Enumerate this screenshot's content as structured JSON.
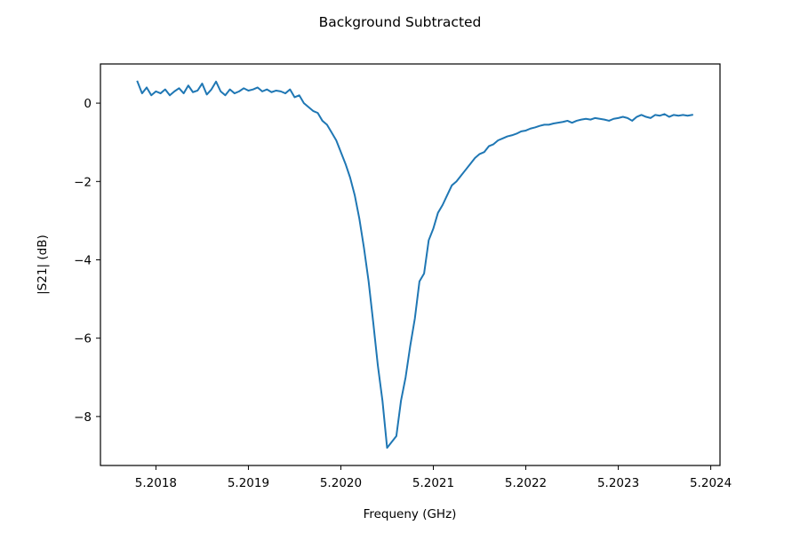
{
  "chart_data": {
    "type": "line",
    "title": "Background Subtracted",
    "xlabel": "Frequeny (GHz)",
    "ylabel": "|S21| (dB)",
    "xlim": [
      5.20174,
      5.20241
    ],
    "ylim": [
      -9.25,
      1.0
    ],
    "xticks": [
      5.2018,
      5.2019,
      5.202,
      5.2021,
      5.2022,
      5.2023,
      5.2024
    ],
    "xtick_labels": [
      "5.2018",
      "5.2019",
      "5.2020",
      "5.2021",
      "5.2022",
      "5.2023",
      "5.2024"
    ],
    "yticks": [
      0,
      -2,
      -4,
      -6,
      -8
    ],
    "ytick_labels": [
      "0",
      "−2",
      "−4",
      "−6",
      "−8"
    ],
    "grid": false,
    "legend": "none",
    "series": [
      {
        "color": "#1f77b4",
        "x": [
          5.20178,
          5.201785,
          5.20179,
          5.201795,
          5.2018,
          5.201805,
          5.20181,
          5.201815,
          5.20182,
          5.201825,
          5.20183,
          5.201835,
          5.20184,
          5.201845,
          5.20185,
          5.201855,
          5.20186,
          5.201865,
          5.20187,
          5.201875,
          5.20188,
          5.201885,
          5.20189,
          5.201895,
          5.2019,
          5.201905,
          5.20191,
          5.201915,
          5.20192,
          5.201925,
          5.20193,
          5.201935,
          5.20194,
          5.201945,
          5.20195,
          5.201955,
          5.20196,
          5.201965,
          5.20197,
          5.201975,
          5.20198,
          5.201985,
          5.20199,
          5.201995,
          5.202,
          5.202005,
          5.20201,
          5.202015,
          5.20202,
          5.202025,
          5.20203,
          5.202035,
          5.20204,
          5.202045,
          5.20205,
          5.202055,
          5.20206,
          5.202065,
          5.20207,
          5.202075,
          5.20208,
          5.202085,
          5.20209,
          5.202095,
          5.2021,
          5.202105,
          5.20211,
          5.202115,
          5.20212,
          5.202125,
          5.20213,
          5.202135,
          5.20214,
          5.202145,
          5.20215,
          5.202155,
          5.20216,
          5.202165,
          5.20217,
          5.202175,
          5.20218,
          5.202185,
          5.20219,
          5.202195,
          5.2022,
          5.202205,
          5.20221,
          5.202215,
          5.20222,
          5.202225,
          5.20223,
          5.202235,
          5.20224,
          5.202245,
          5.20225,
          5.202255,
          5.20226,
          5.202265,
          5.20227,
          5.202275,
          5.20228,
          5.202285,
          5.20229,
          5.202295,
          5.2023,
          5.202305,
          5.20231,
          5.202315,
          5.20232,
          5.202325,
          5.20233,
          5.202335,
          5.20234,
          5.202345,
          5.20235,
          5.202355,
          5.20236,
          5.202365,
          5.20237,
          5.202375,
          5.20238
        ],
        "y": [
          0.55,
          0.25,
          0.4,
          0.2,
          0.3,
          0.25,
          0.35,
          0.2,
          0.3,
          0.38,
          0.25,
          0.45,
          0.28,
          0.32,
          0.5,
          0.22,
          0.35,
          0.55,
          0.3,
          0.2,
          0.35,
          0.25,
          0.3,
          0.38,
          0.32,
          0.35,
          0.4,
          0.3,
          0.35,
          0.28,
          0.32,
          0.3,
          0.25,
          0.35,
          0.15,
          0.2,
          0.0,
          -0.1,
          -0.2,
          -0.25,
          -0.45,
          -0.55,
          -0.75,
          -0.95,
          -1.25,
          -1.55,
          -1.9,
          -2.35,
          -2.95,
          -3.7,
          -4.55,
          -5.6,
          -6.7,
          -7.6,
          -8.8,
          -8.65,
          -8.5,
          -7.6,
          -7.0,
          -6.2,
          -5.5,
          -4.55,
          -4.35,
          -3.5,
          -3.2,
          -2.8,
          -2.6,
          -2.35,
          -2.1,
          -2.0,
          -1.85,
          -1.7,
          -1.55,
          -1.4,
          -1.3,
          -1.25,
          -1.1,
          -1.05,
          -0.95,
          -0.9,
          -0.85,
          -0.82,
          -0.78,
          -0.72,
          -0.7,
          -0.65,
          -0.62,
          -0.58,
          -0.55,
          -0.55,
          -0.52,
          -0.5,
          -0.48,
          -0.45,
          -0.5,
          -0.45,
          -0.42,
          -0.4,
          -0.42,
          -0.38,
          -0.4,
          -0.42,
          -0.45,
          -0.4,
          -0.38,
          -0.35,
          -0.38,
          -0.45,
          -0.35,
          -0.3,
          -0.35,
          -0.38,
          -0.3,
          -0.32,
          -0.28,
          -0.35,
          -0.3,
          -0.32,
          -0.3,
          -0.32,
          -0.3
        ]
      }
    ]
  }
}
